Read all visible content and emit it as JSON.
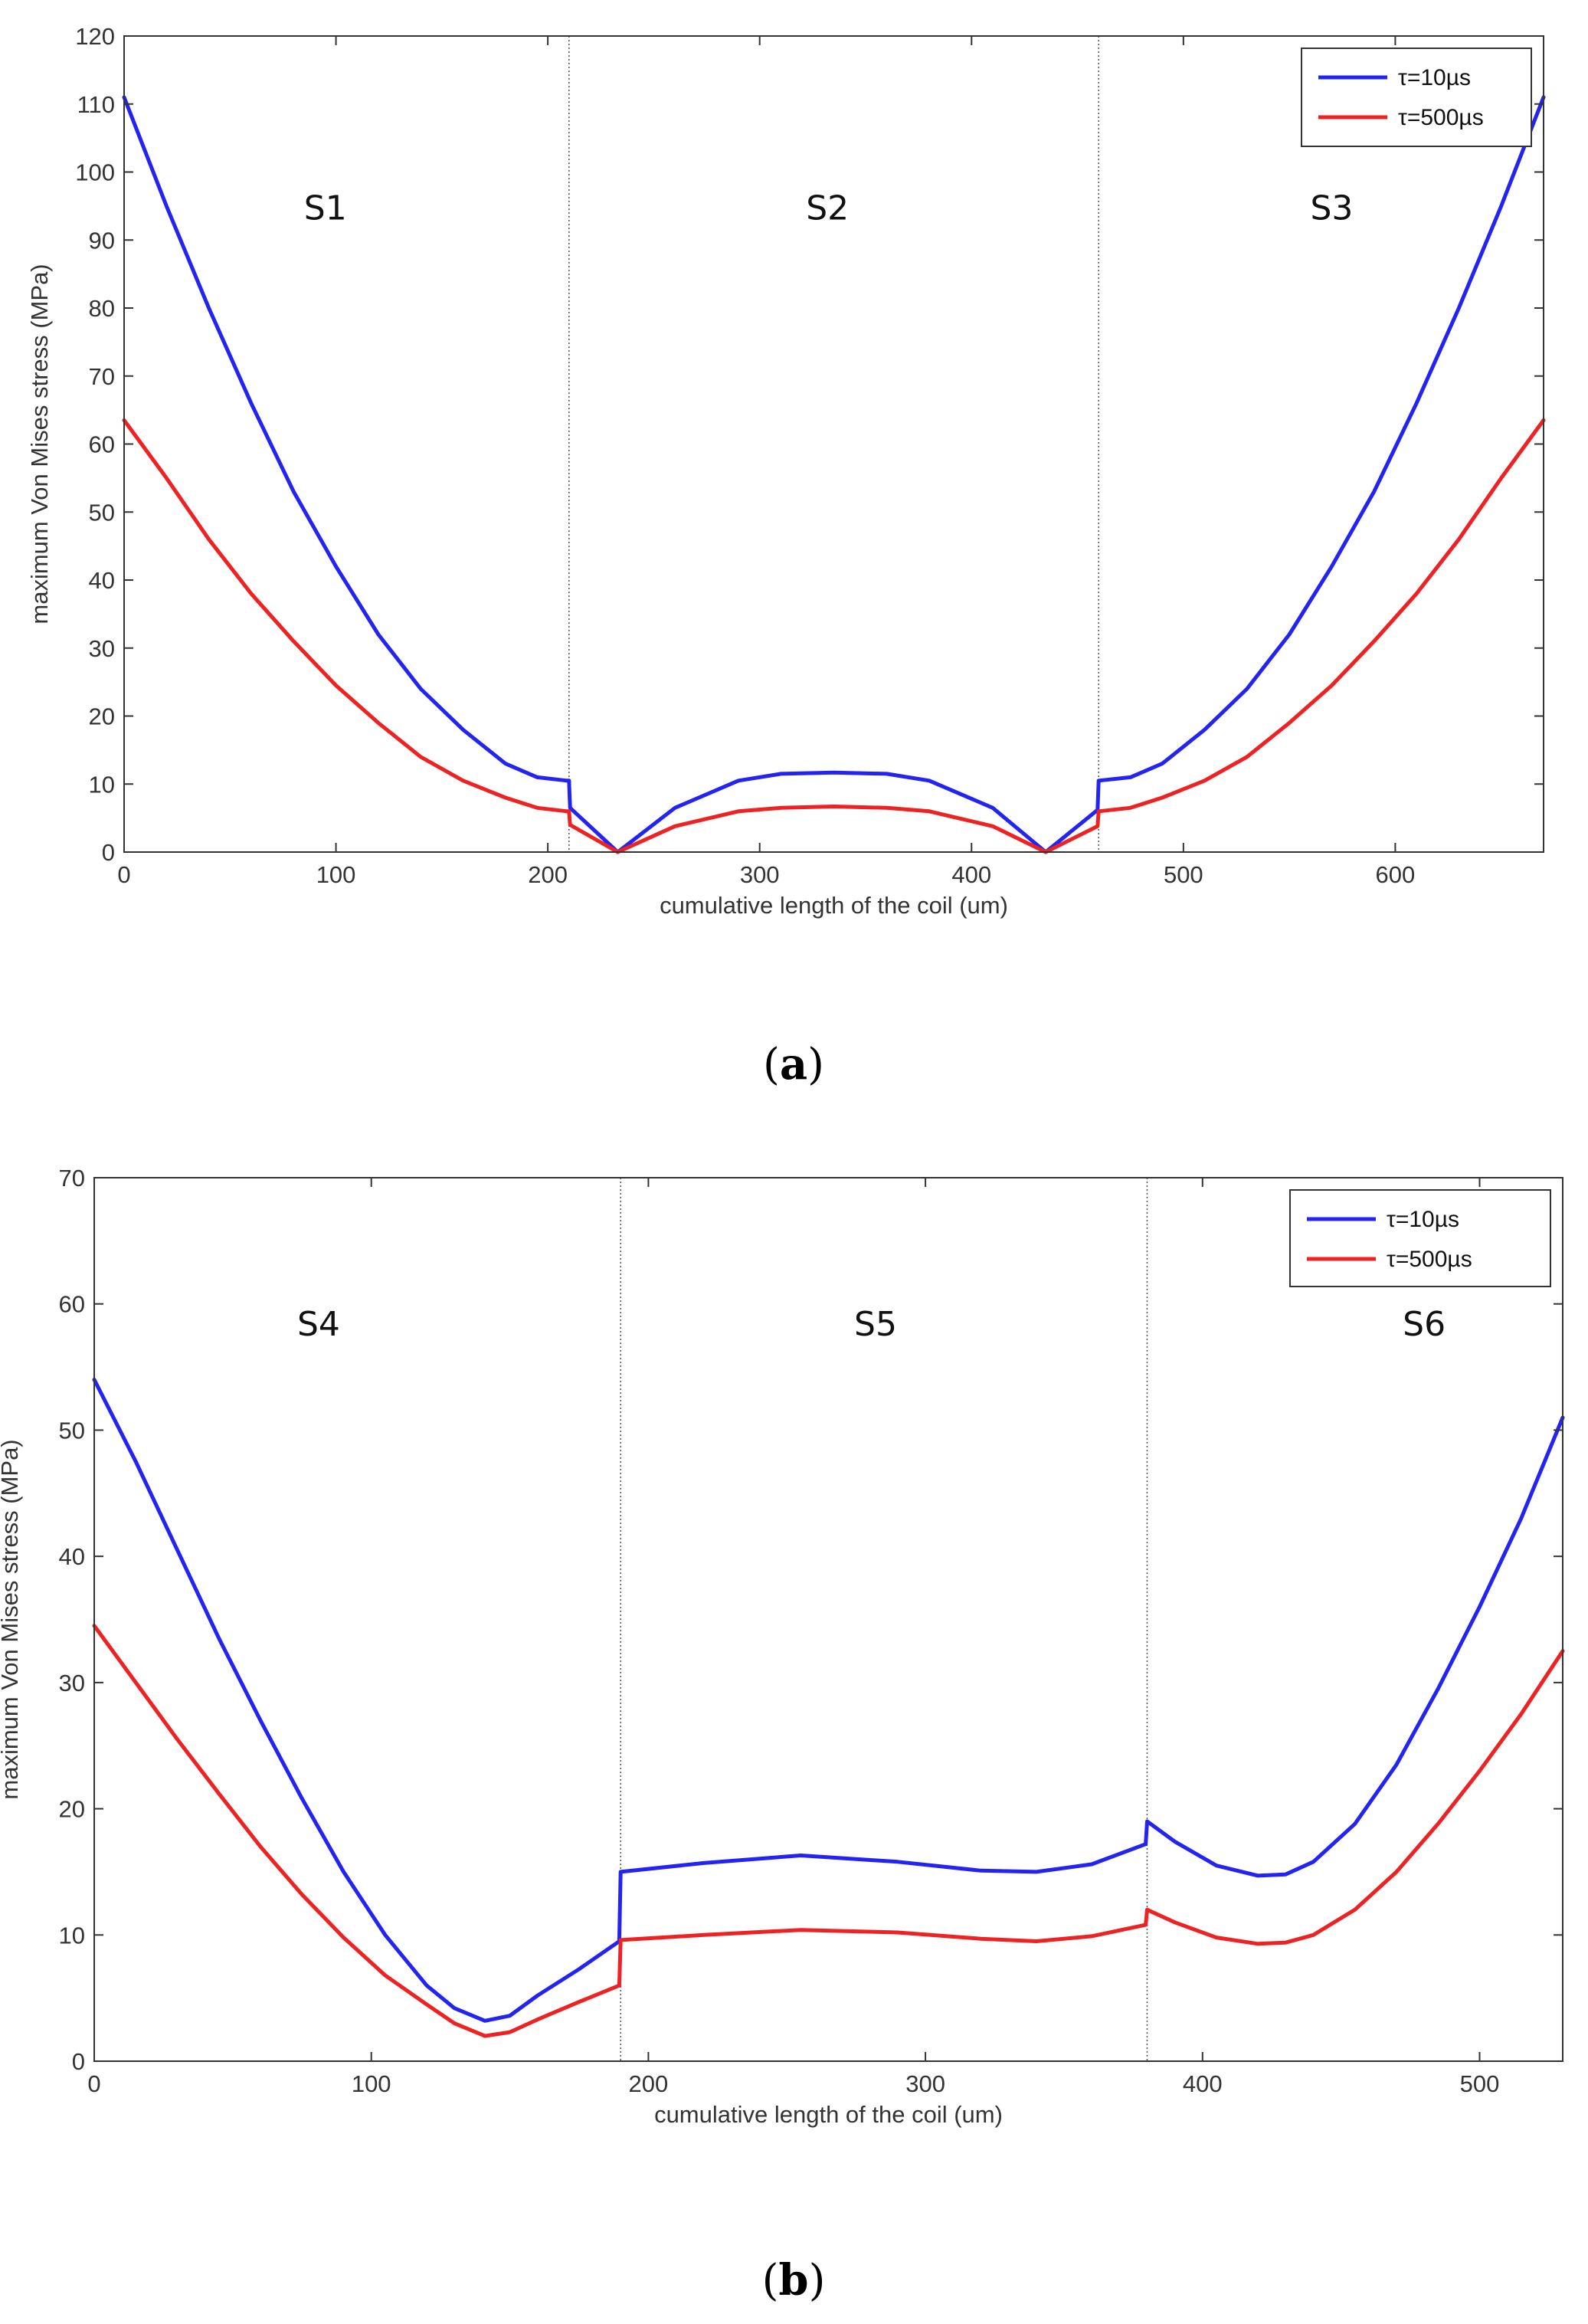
{
  "chart_data": [
    {
      "type": "line",
      "panel_label": "(a)",
      "panel_letter": "a",
      "xlabel": "cumulative length of the coil (um)",
      "ylabel": "maximum Von Mises stress (MPa)",
      "xlim": [
        0,
        670
      ],
      "ylim": [
        0,
        120
      ],
      "xticks": [
        0,
        100,
        200,
        300,
        400,
        500,
        600
      ],
      "yticks": [
        0,
        10,
        20,
        30,
        40,
        50,
        60,
        70,
        80,
        90,
        100,
        110,
        120
      ],
      "grid": false,
      "legend_position": "top-right",
      "dividers": [
        210,
        460
      ],
      "regions": [
        {
          "label": "S1",
          "x": 95,
          "y": 93
        },
        {
          "label": "S2",
          "x": 332,
          "y": 93
        },
        {
          "label": "S3",
          "x": 570,
          "y": 93
        }
      ],
      "series": [
        {
          "name": "τ=10µs",
          "color": "#2323f2",
          "points": [
            [
              0,
              111
            ],
            [
              20,
              95
            ],
            [
              40,
              80
            ],
            [
              60,
              66
            ],
            [
              80,
              53
            ],
            [
              100,
              42
            ],
            [
              120,
              32
            ],
            [
              140,
              24
            ],
            [
              160,
              18
            ],
            [
              180,
              13
            ],
            [
              195,
              11
            ],
            [
              209,
              10.5
            ],
            [
              210,
              10.5
            ],
            [
              210.5,
              6.5
            ],
            [
              233,
              0
            ],
            [
              260,
              6.5
            ],
            [
              290,
              10.5
            ],
            [
              310,
              11.5
            ],
            [
              335,
              11.7
            ],
            [
              360,
              11.5
            ],
            [
              380,
              10.5
            ],
            [
              410,
              6.5
            ],
            [
              435,
              0
            ],
            [
              459.5,
              6.2
            ],
            [
              460,
              10.5
            ],
            [
              475,
              11
            ],
            [
              490,
              13
            ],
            [
              510,
              18
            ],
            [
              530,
              24
            ],
            [
              550,
              32
            ],
            [
              570,
              42
            ],
            [
              590,
              53
            ],
            [
              610,
              66
            ],
            [
              630,
              80
            ],
            [
              650,
              95
            ],
            [
              670,
              111
            ]
          ]
        },
        {
          "name": "τ=500µs",
          "color": "#ee2222",
          "points": [
            [
              0,
              63.5
            ],
            [
              20,
              55
            ],
            [
              40,
              46
            ],
            [
              60,
              38
            ],
            [
              80,
              31
            ],
            [
              100,
              24.5
            ],
            [
              120,
              19
            ],
            [
              140,
              14
            ],
            [
              160,
              10.5
            ],
            [
              180,
              8
            ],
            [
              195,
              6.5
            ],
            [
              209,
              6
            ],
            [
              210,
              6
            ],
            [
              210.5,
              4
            ],
            [
              233,
              0
            ],
            [
              260,
              3.8
            ],
            [
              290,
              6
            ],
            [
              310,
              6.5
            ],
            [
              335,
              6.7
            ],
            [
              360,
              6.5
            ],
            [
              380,
              6
            ],
            [
              410,
              3.8
            ],
            [
              435,
              0
            ],
            [
              459.5,
              3.8
            ],
            [
              460,
              6
            ],
            [
              475,
              6.5
            ],
            [
              490,
              8
            ],
            [
              510,
              10.5
            ],
            [
              530,
              14
            ],
            [
              550,
              19
            ],
            [
              570,
              24.5
            ],
            [
              590,
              31
            ],
            [
              610,
              38
            ],
            [
              630,
              46
            ],
            [
              650,
              55
            ],
            [
              670,
              63.5
            ]
          ]
        }
      ]
    },
    {
      "type": "line",
      "panel_label": "(b)",
      "panel_letter": "b",
      "xlabel": "cumulative length of the coil (um)",
      "ylabel": "maximum Von Mises stress (MPa)",
      "xlim": [
        0,
        530
      ],
      "ylim": [
        0,
        70
      ],
      "xticks": [
        0,
        100,
        200,
        300,
        400,
        500
      ],
      "yticks": [
        0,
        10,
        20,
        30,
        40,
        50,
        60,
        70
      ],
      "grid": false,
      "legend_position": "top-right",
      "dividers": [
        190,
        380
      ],
      "regions": [
        {
          "label": "S4",
          "x": 81,
          "y": 57.5
        },
        {
          "label": "S5",
          "x": 282,
          "y": 57.5
        },
        {
          "label": "S6",
          "x": 480,
          "y": 57.5
        }
      ],
      "series": [
        {
          "name": "τ=10µs",
          "color": "#2323f2",
          "points": [
            [
              0,
              54
            ],
            [
              15,
              47.5
            ],
            [
              30,
              40.5
            ],
            [
              45,
              33.5
            ],
            [
              60,
              27
            ],
            [
              75,
              20.8
            ],
            [
              90,
              15
            ],
            [
              105,
              10
            ],
            [
              120,
              6
            ],
            [
              130,
              4.2
            ],
            [
              141,
              3.2
            ],
            [
              150,
              3.6
            ],
            [
              160,
              5.2
            ],
            [
              175,
              7.3
            ],
            [
              189.5,
              9.5
            ],
            [
              190,
              15
            ],
            [
              220,
              15.7
            ],
            [
              255,
              16.3
            ],
            [
              290,
              15.8
            ],
            [
              320,
              15.1
            ],
            [
              340,
              15
            ],
            [
              360,
              15.6
            ],
            [
              379.5,
              17.2
            ],
            [
              380,
              19
            ],
            [
              390,
              17.4
            ],
            [
              405,
              15.5
            ],
            [
              420,
              14.7
            ],
            [
              430,
              14.8
            ],
            [
              440,
              15.8
            ],
            [
              455,
              18.8
            ],
            [
              470,
              23.5
            ],
            [
              485,
              29.5
            ],
            [
              500,
              36
            ],
            [
              515,
              43
            ],
            [
              530,
              51
            ]
          ]
        },
        {
          "name": "τ=500µs",
          "color": "#ee2222",
          "points": [
            [
              0,
              34.5
            ],
            [
              15,
              30
            ],
            [
              30,
              25.5
            ],
            [
              45,
              21.2
            ],
            [
              60,
              17
            ],
            [
              75,
              13.2
            ],
            [
              90,
              9.8
            ],
            [
              105,
              6.8
            ],
            [
              120,
              4.5
            ],
            [
              130,
              3
            ],
            [
              141,
              2
            ],
            [
              150,
              2.3
            ],
            [
              160,
              3.3
            ],
            [
              175,
              4.7
            ],
            [
              189.5,
              6
            ],
            [
              190,
              9.6
            ],
            [
              220,
              10
            ],
            [
              255,
              10.4
            ],
            [
              290,
              10.2
            ],
            [
              320,
              9.7
            ],
            [
              340,
              9.5
            ],
            [
              360,
              9.9
            ],
            [
              379.5,
              10.8
            ],
            [
              380,
              12
            ],
            [
              390,
              11
            ],
            [
              405,
              9.8
            ],
            [
              420,
              9.3
            ],
            [
              430,
              9.4
            ],
            [
              440,
              10
            ],
            [
              455,
              12
            ],
            [
              470,
              15
            ],
            [
              485,
              18.8
            ],
            [
              500,
              23
            ],
            [
              515,
              27.5
            ],
            [
              530,
              32.5
            ]
          ]
        }
      ]
    }
  ]
}
